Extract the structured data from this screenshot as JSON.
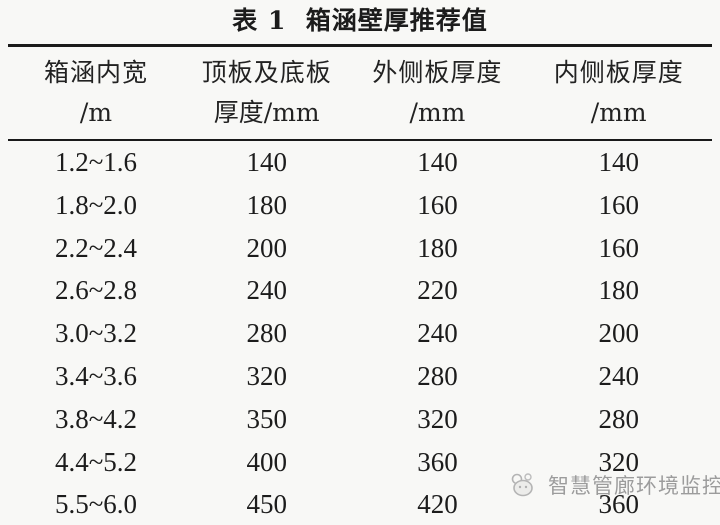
{
  "title": "表 1  箱涵壁厚推荐值",
  "table": {
    "headers": [
      {
        "line1": "箱涵内宽",
        "line2": "/m"
      },
      {
        "line1": "顶板及底板",
        "line2": "厚度/mm"
      },
      {
        "line1": "外侧板厚度",
        "line2": "/mm"
      },
      {
        "line1": "内侧板厚度",
        "line2": "/mm"
      }
    ],
    "rows": [
      [
        "1.2~1.6",
        "140",
        "140",
        "140"
      ],
      [
        "1.8~2.0",
        "180",
        "160",
        "160"
      ],
      [
        "2.2~2.4",
        "200",
        "180",
        "160"
      ],
      [
        "2.6~2.8",
        "240",
        "220",
        "180"
      ],
      [
        "3.0~3.2",
        "280",
        "240",
        "200"
      ],
      [
        "3.4~3.6",
        "320",
        "280",
        "240"
      ],
      [
        "3.8~4.2",
        "350",
        "320",
        "280"
      ],
      [
        "4.4~5.2",
        "400",
        "360",
        "320"
      ],
      [
        "5.5~6.0",
        "450",
        "420",
        "360"
      ]
    ]
  },
  "watermark": {
    "text": "智慧管廊环境监控",
    "icon": "mascot-logo-icon",
    "color": "#9c9c9c"
  },
  "colors": {
    "background": "#f8f8f6",
    "text": "#1c1c1c",
    "rule": "#1a1a1a"
  },
  "chart_data": {
    "type": "table",
    "title": "表 1  箱涵壁厚推荐值",
    "columns": [
      "箱涵内宽/m",
      "顶板及底板厚度/mm",
      "外侧板厚度/mm",
      "内侧板厚度/mm"
    ],
    "rows": [
      [
        "1.2~1.6",
        140,
        140,
        140
      ],
      [
        "1.8~2.0",
        180,
        160,
        160
      ],
      [
        "2.2~2.4",
        200,
        180,
        160
      ],
      [
        "2.6~2.8",
        240,
        220,
        180
      ],
      [
        "3.0~3.2",
        280,
        240,
        200
      ],
      [
        "3.4~3.6",
        320,
        280,
        240
      ],
      [
        "3.8~4.2",
        350,
        320,
        280
      ],
      [
        "4.4~5.2",
        400,
        360,
        320
      ],
      [
        "5.5~6.0",
        450,
        420,
        360
      ]
    ]
  }
}
